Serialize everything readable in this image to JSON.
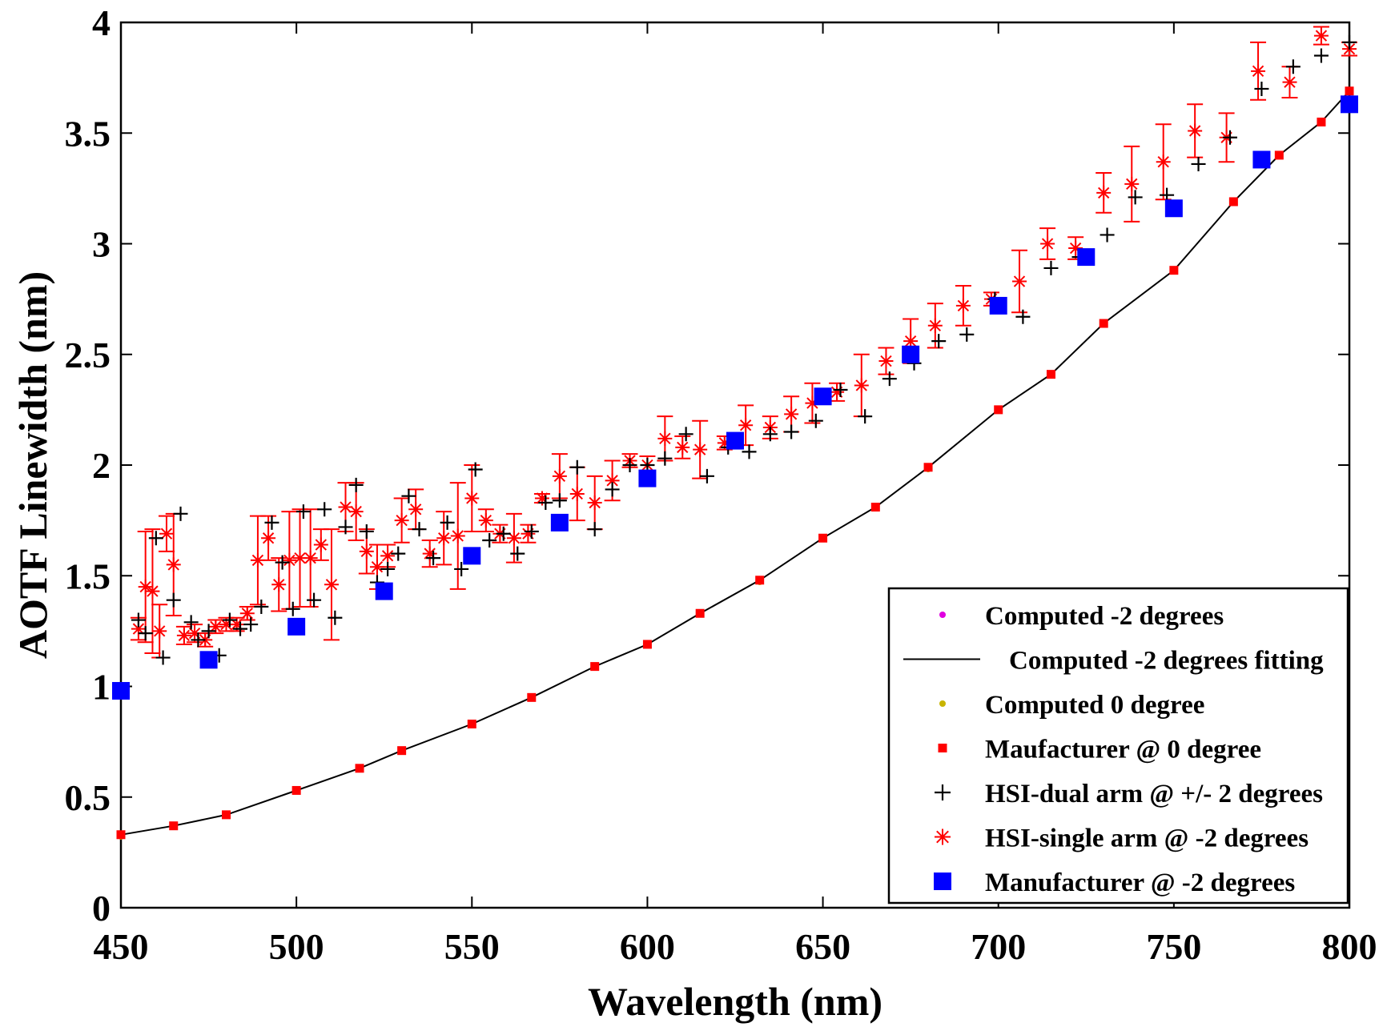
{
  "chart_data": {
    "type": "scatter",
    "title": "",
    "xlabel": "Wavelength (nm)",
    "ylabel": "AOTF Linewidth (nm)",
    "xlim": [
      450,
      800
    ],
    "ylim": [
      0,
      4
    ],
    "xticks": [
      450,
      500,
      550,
      600,
      650,
      700,
      750,
      800
    ],
    "yticks": [
      0,
      0.5,
      1,
      1.5,
      2,
      2.5,
      3,
      3.5,
      4
    ],
    "xtick_labels": [
      "450",
      "500",
      "550",
      "600",
      "650",
      "700",
      "750",
      "800"
    ],
    "ytick_labels": [
      "0",
      "0.5",
      "1",
      "1.5",
      "2",
      "2.5",
      "3",
      "3.5",
      "4"
    ],
    "grid": false,
    "legend_position": "bottom-right",
    "series": [
      {
        "name": "Computed -2 degrees",
        "kind": "marker-dot",
        "color": "#e000e0",
        "x": [
          450,
          465,
          480,
          500,
          518,
          530,
          550,
          567,
          585,
          600,
          615,
          632,
          650,
          665,
          680,
          700,
          715,
          730,
          750,
          767,
          780,
          792,
          800
        ],
        "y": [
          0.33,
          0.37,
          0.42,
          0.53,
          0.63,
          0.71,
          0.83,
          0.95,
          1.09,
          1.19,
          1.33,
          1.48,
          1.67,
          1.81,
          1.99,
          2.25,
          2.41,
          2.64,
          2.88,
          3.19,
          3.4,
          3.55,
          3.69
        ]
      },
      {
        "name": "Computed -2 degrees fitting",
        "kind": "line",
        "color": "#000000",
        "x": [
          450,
          465,
          480,
          500,
          518,
          530,
          550,
          567,
          585,
          600,
          615,
          632,
          650,
          665,
          680,
          700,
          715,
          730,
          750,
          767,
          780,
          792,
          800
        ],
        "y": [
          0.33,
          0.37,
          0.42,
          0.53,
          0.63,
          0.71,
          0.83,
          0.95,
          1.09,
          1.19,
          1.33,
          1.48,
          1.67,
          1.81,
          1.99,
          2.25,
          2.41,
          2.64,
          2.88,
          3.19,
          3.4,
          3.55,
          3.69
        ]
      },
      {
        "name": "Computed 0 degree",
        "kind": "marker-dot",
        "color": "#c8b400",
        "x": [
          450,
          465,
          480,
          500,
          518,
          530,
          550,
          567,
          585,
          600,
          615,
          632,
          650,
          665,
          680,
          700,
          715,
          730,
          750,
          767,
          780,
          792,
          800
        ],
        "y": [
          0.32,
          0.37,
          0.42,
          0.53,
          0.63,
          0.71,
          0.83,
          0.95,
          1.09,
          1.19,
          1.33,
          1.47,
          1.67,
          1.81,
          1.98,
          2.25,
          2.41,
          2.64,
          2.88,
          3.19,
          3.4,
          3.55,
          3.69
        ]
      },
      {
        "name": "Maufacturer @ 0 degree",
        "kind": "marker-small-square",
        "color": "#ff0000",
        "x": [
          450,
          465,
          480,
          500,
          518,
          530,
          550,
          567,
          585,
          600,
          615,
          632,
          650,
          665,
          680,
          700,
          715,
          730,
          750,
          767,
          780,
          792,
          800
        ],
        "y": [
          0.33,
          0.37,
          0.42,
          0.53,
          0.63,
          0.71,
          0.83,
          0.95,
          1.09,
          1.19,
          1.33,
          1.48,
          1.67,
          1.81,
          1.99,
          2.25,
          2.41,
          2.64,
          2.88,
          3.19,
          3.4,
          3.55,
          3.69
        ]
      },
      {
        "name": "HSI-dual arm @ +/- 2 degrees",
        "kind": "marker-plus",
        "color": "#000000",
        "x": [
          455,
          457,
          460,
          462,
          465,
          467,
          470,
          472,
          475,
          478,
          481,
          484,
          487,
          490,
          493,
          496,
          499,
          502,
          505,
          508,
          511,
          514,
          517,
          520,
          523,
          526,
          529,
          532,
          535,
          539,
          543,
          547,
          551,
          555,
          559,
          563,
          567,
          571,
          575,
          580,
          585,
          590,
          595,
          600,
          605,
          611,
          617,
          623,
          629,
          635,
          641,
          648,
          655,
          662,
          669,
          676,
          683,
          691,
          699,
          707,
          715,
          723,
          731,
          739,
          748,
          757,
          766,
          775,
          784,
          792,
          800
        ],
        "y": [
          1.3,
          1.24,
          1.67,
          1.13,
          1.39,
          1.78,
          1.29,
          1.21,
          1.25,
          1.14,
          1.3,
          1.26,
          1.28,
          1.36,
          1.74,
          1.56,
          1.35,
          1.79,
          1.39,
          1.8,
          1.31,
          1.72,
          1.91,
          1.7,
          1.47,
          1.53,
          1.6,
          1.86,
          1.71,
          1.58,
          1.74,
          1.53,
          1.98,
          1.66,
          1.69,
          1.6,
          1.7,
          1.83,
          1.84,
          1.99,
          1.71,
          1.89,
          2.0,
          2.0,
          2.03,
          2.14,
          1.95,
          2.08,
          2.06,
          2.14,
          2.15,
          2.2,
          2.34,
          2.22,
          2.39,
          2.46,
          2.56,
          2.59,
          2.75,
          2.67,
          2.89,
          2.94,
          3.04,
          3.21,
          3.22,
          3.36,
          3.48,
          3.7,
          3.8,
          3.85,
          3.91
        ]
      },
      {
        "name": "HSI-single arm @ -2 degrees",
        "kind": "marker-asterisk-errorbar",
        "color": "#ff0000",
        "x": [
          455,
          457,
          459,
          461,
          463,
          465,
          468,
          471,
          474,
          477,
          480,
          483,
          486,
          489,
          492,
          495,
          498,
          501,
          504,
          507,
          510,
          514,
          517,
          520,
          523,
          526,
          530,
          534,
          538,
          542,
          546,
          550,
          554,
          558,
          562,
          566,
          570,
          575,
          580,
          585,
          590,
          595,
          600,
          605,
          610,
          615,
          622,
          628,
          635,
          641,
          647,
          654,
          661,
          668,
          675,
          682,
          690,
          698,
          706,
          714,
          722,
          730,
          738,
          747,
          756,
          765,
          774,
          783,
          792,
          800
        ],
        "y": [
          1.26,
          1.45,
          1.43,
          1.25,
          1.69,
          1.55,
          1.23,
          1.24,
          1.21,
          1.27,
          1.28,
          1.28,
          1.33,
          1.57,
          1.67,
          1.46,
          1.57,
          1.58,
          1.58,
          1.64,
          1.46,
          1.81,
          1.79,
          1.61,
          1.54,
          1.59,
          1.75,
          1.8,
          1.6,
          1.67,
          1.68,
          1.85,
          1.75,
          1.69,
          1.67,
          1.69,
          1.85,
          1.95,
          1.87,
          1.83,
          1.93,
          2.02,
          2.0,
          2.12,
          2.08,
          2.07,
          2.1,
          2.18,
          2.17,
          2.23,
          2.28,
          2.33,
          2.36,
          2.47,
          2.56,
          2.63,
          2.72,
          2.75,
          2.83,
          3.0,
          2.98,
          3.23,
          3.27,
          3.37,
          3.51,
          3.48,
          3.78,
          3.73,
          3.94,
          3.88
        ],
        "err": [
          0.05,
          0.25,
          0.28,
          0.12,
          0.08,
          0.23,
          0.04,
          0.04,
          0.03,
          0.03,
          0.03,
          0.03,
          0.03,
          0.2,
          0.1,
          0.12,
          0.22,
          0.22,
          0.22,
          0.07,
          0.25,
          0.11,
          0.13,
          0.1,
          0.1,
          0.05,
          0.1,
          0.09,
          0.06,
          0.12,
          0.24,
          0.15,
          0.05,
          0.04,
          0.11,
          0.04,
          0.02,
          0.1,
          0.12,
          0.12,
          0.09,
          0.03,
          0.04,
          0.1,
          0.05,
          0.13,
          0.03,
          0.09,
          0.05,
          0.08,
          0.09,
          0.04,
          0.14,
          0.06,
          0.1,
          0.1,
          0.09,
          0.03,
          0.14,
          0.07,
          0.05,
          0.09,
          0.17,
          0.17,
          0.12,
          0.11,
          0.13,
          0.07,
          0.04,
          0.03
        ]
      },
      {
        "name": "Manufacturer @ -2 degrees",
        "kind": "marker-large-square",
        "color": "#0000ff",
        "x": [
          450,
          475,
          500,
          525,
          550,
          575,
          600,
          625,
          650,
          675,
          700,
          725,
          750,
          775,
          800
        ],
        "y": [
          0.98,
          1.12,
          1.27,
          1.43,
          1.59,
          1.74,
          1.94,
          2.11,
          2.31,
          2.5,
          2.72,
          2.94,
          3.16,
          3.38,
          3.63
        ]
      }
    ]
  }
}
